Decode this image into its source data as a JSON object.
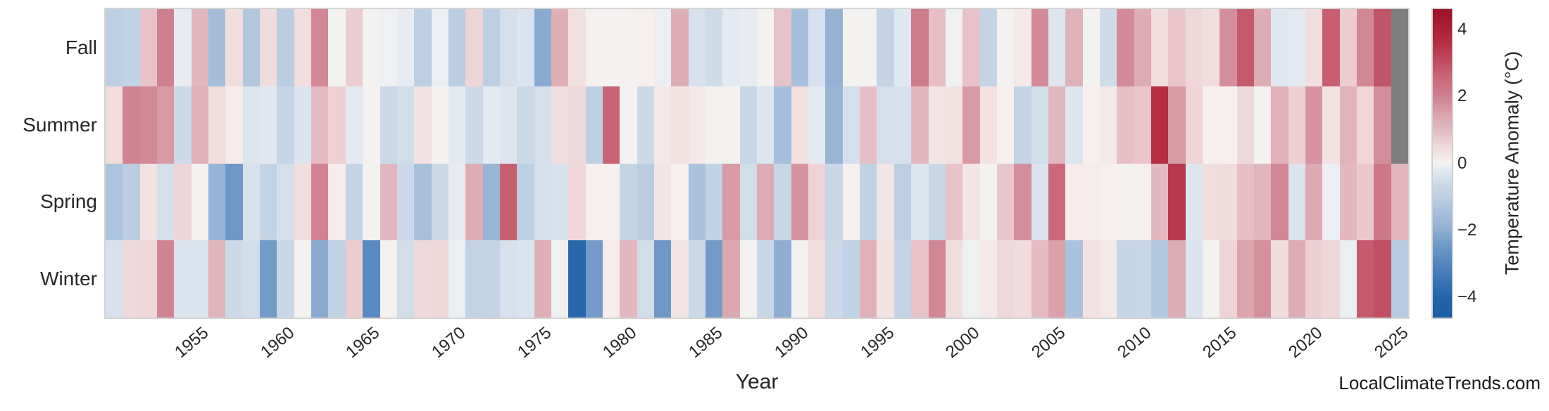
{
  "x_axis": {
    "label": "Year",
    "tick_labels": [
      "1955",
      "1960",
      "1965",
      "1970",
      "1975",
      "1980",
      "1985",
      "1990",
      "1995",
      "2000",
      "2005",
      "2010",
      "2015",
      "2020",
      "2025"
    ],
    "tick_years": [
      1955,
      1960,
      1965,
      1970,
      1975,
      1980,
      1985,
      1990,
      1995,
      2000,
      2005,
      2010,
      2015,
      2020,
      2025
    ]
  },
  "y_axis": {
    "categories": [
      "Fall",
      "Summer",
      "Spring",
      "Winter"
    ]
  },
  "colorbar": {
    "label": "Temperature Anomaly (°C)",
    "tick_labels": [
      "4",
      "2",
      "0",
      "−2",
      "−4"
    ],
    "tick_values": [
      4,
      2,
      0,
      -2,
      -4
    ],
    "top_color": "#9e1126",
    "zero_color": "#f3f2f1",
    "bottom_color": "#1f5da4"
  },
  "watermark": "LocalClimateTrends.com",
  "missing_data_color": "#7f7f7f",
  "chart_data": {
    "type": "heatmap",
    "title": "",
    "xlabel": "Year",
    "ylabel": "",
    "legend_label": "Temperature Anomaly (°C)",
    "grid": false,
    "value_range": [
      -4.6,
      4.6
    ],
    "x_start": 1950,
    "x_end": 2025,
    "x": [
      1950,
      1951,
      1952,
      1953,
      1954,
      1955,
      1956,
      1957,
      1958,
      1959,
      1960,
      1961,
      1962,
      1963,
      1964,
      1965,
      1966,
      1967,
      1968,
      1969,
      1970,
      1971,
      1972,
      1973,
      1974,
      1975,
      1976,
      1977,
      1978,
      1979,
      1980,
      1981,
      1982,
      1983,
      1984,
      1985,
      1986,
      1987,
      1988,
      1989,
      1990,
      1991,
      1992,
      1993,
      1994,
      1995,
      1996,
      1997,
      1998,
      1999,
      2000,
      2001,
      2002,
      2003,
      2004,
      2005,
      2006,
      2007,
      2008,
      2009,
      2010,
      2011,
      2012,
      2013,
      2014,
      2015,
      2016,
      2017,
      2018,
      2019,
      2020,
      2021,
      2022,
      2023,
      2024,
      2025
    ],
    "rows": [
      "Fall",
      "Summer",
      "Spring",
      "Winter"
    ],
    "series": [
      {
        "name": "Fall",
        "values": [
          -1.0,
          -0.9,
          0.85,
          2.0,
          -0.15,
          1.05,
          -1.55,
          0.4,
          -1.25,
          0.45,
          -1.05,
          0.4,
          1.9,
          0.0,
          0.7,
          0.0,
          -0.05,
          -0.15,
          -1.0,
          -0.1,
          -1.05,
          0.6,
          -1.0,
          -0.45,
          -0.35,
          -2.1,
          1.25,
          0.35,
          0.05,
          0.0,
          0.05,
          0.1,
          -0.1,
          1.3,
          -0.4,
          -0.55,
          -0.2,
          -0.15,
          0.0,
          0.85,
          -1.5,
          -0.4,
          -1.9,
          0.0,
          0.0,
          -0.8,
          -0.25,
          2.1,
          0.9,
          -0.05,
          0.85,
          -0.8,
          0.0,
          0.2,
          1.85,
          -0.3,
          1.2,
          0.0,
          -0.55,
          1.85,
          1.3,
          0.4,
          0.8,
          0.55,
          0.4,
          1.8,
          2.8,
          1.3,
          -0.25,
          -0.2,
          0.4,
          2.7,
          0.7,
          1.9,
          2.9,
          null
        ]
      },
      {
        "name": "Summer",
        "values": [
          0.4,
          1.95,
          1.85,
          1.6,
          -0.6,
          1.2,
          0.4,
          0.15,
          -0.3,
          -0.25,
          -0.75,
          -0.35,
          0.95,
          0.65,
          -0.2,
          0.05,
          -0.65,
          -0.5,
          0.3,
          0.0,
          -0.2,
          -0.6,
          -0.2,
          -0.3,
          -0.65,
          -0.45,
          0.4,
          0.5,
          -1.0,
          2.6,
          0.0,
          -0.6,
          0.2,
          0.3,
          0.2,
          0.0,
          0.0,
          -0.7,
          -0.3,
          -1.5,
          0.35,
          -0.2,
          -1.8,
          -0.45,
          0.9,
          -0.45,
          -0.4,
          1.0,
          0.25,
          0.3,
          1.6,
          0.3,
          0.1,
          -0.8,
          -0.5,
          1.05,
          -0.3,
          0.1,
          0.2,
          0.9,
          0.8,
          3.6,
          1.6,
          0.6,
          0.1,
          0.1,
          0.5,
          0.0,
          1.2,
          0.65,
          1.7,
          0.3,
          1.1,
          0.55,
          1.8,
          null
        ]
      },
      {
        "name": "Spring",
        "values": [
          -1.35,
          -1.05,
          0.3,
          -0.45,
          0.6,
          0.0,
          -1.85,
          -2.5,
          -0.4,
          -0.85,
          -0.45,
          0.4,
          1.95,
          0.15,
          -0.8,
          0.0,
          1.05,
          -0.6,
          -1.45,
          -0.6,
          -0.15,
          1.3,
          -1.8,
          2.7,
          -0.95,
          -0.45,
          -0.4,
          0.55,
          0.1,
          0.1,
          -0.8,
          -1.05,
          0.25,
          0.1,
          -1.4,
          -0.9,
          1.6,
          -0.5,
          1.3,
          -0.7,
          1.7,
          0.6,
          -0.7,
          0.1,
          -0.9,
          0.25,
          -1.0,
          -0.3,
          -0.7,
          0.85,
          0.25,
          0.0,
          0.8,
          1.8,
          -0.35,
          2.5,
          0.15,
          0.15,
          0.1,
          0.0,
          0.1,
          1.0,
          3.4,
          -0.3,
          0.4,
          0.45,
          0.9,
          1.05,
          1.9,
          -0.35,
          1.35,
          -0.1,
          1.0,
          0.75,
          2.2,
          1.05
        ]
      },
      {
        "name": "Winter",
        "values": [
          -0.4,
          0.5,
          0.55,
          1.95,
          -0.35,
          -0.35,
          1.1,
          -0.6,
          -0.5,
          -2.4,
          -0.7,
          0.0,
          -2.1,
          -0.9,
          0.7,
          -2.9,
          0.0,
          -0.5,
          0.5,
          0.55,
          -0.1,
          -0.85,
          -0.8,
          -0.4,
          -0.35,
          1.25,
          -0.05,
          -3.9,
          -2.4,
          0.15,
          1.0,
          -0.5,
          -2.5,
          0.25,
          -0.6,
          -2.4,
          1.4,
          0.0,
          -0.7,
          -2.0,
          0.0,
          0.4,
          -0.6,
          -0.9,
          1.2,
          0.3,
          -0.8,
          0.85,
          1.9,
          0.4,
          -0.05,
          0.2,
          0.5,
          0.45,
          0.95,
          1.5,
          -1.4,
          0.3,
          0.2,
          -0.75,
          -0.7,
          -1.2,
          1.3,
          -0.35,
          0.0,
          0.6,
          1.45,
          1.75,
          0.45,
          1.3,
          0.65,
          0.55,
          -0.1,
          2.8,
          3.0,
          -1.1
        ]
      }
    ],
    "color_anchors": [
      [
        -4.6,
        "#1f5da4"
      ],
      [
        -4.0,
        "#2364ab"
      ],
      [
        -2.9,
        "#5989c0"
      ],
      [
        -2.4,
        "#729cc7"
      ],
      [
        -2.0,
        "#8fafd2"
      ],
      [
        -1.5,
        "#a5bfdc"
      ],
      [
        -1.0,
        "#bccfe4"
      ],
      [
        -0.6,
        "#ccd9e8"
      ],
      [
        -0.3,
        "#dde5ef"
      ],
      [
        -0.1,
        "#ebeef3"
      ],
      [
        0.0,
        "#f3f2f1"
      ],
      [
        0.1,
        "#f6efee"
      ],
      [
        0.3,
        "#f2e2e2"
      ],
      [
        0.6,
        "#eed3d7"
      ],
      [
        1.0,
        "#e3b8c0"
      ],
      [
        1.4,
        "#dca8b0"
      ],
      [
        2.0,
        "#cf8090"
      ],
      [
        2.6,
        "#c96476"
      ],
      [
        3.0,
        "#c04f63"
      ],
      [
        3.6,
        "#b52e41"
      ],
      [
        4.0,
        "#aa2134"
      ],
      [
        4.6,
        "#9e1126"
      ]
    ],
    "legend_position": "right"
  }
}
